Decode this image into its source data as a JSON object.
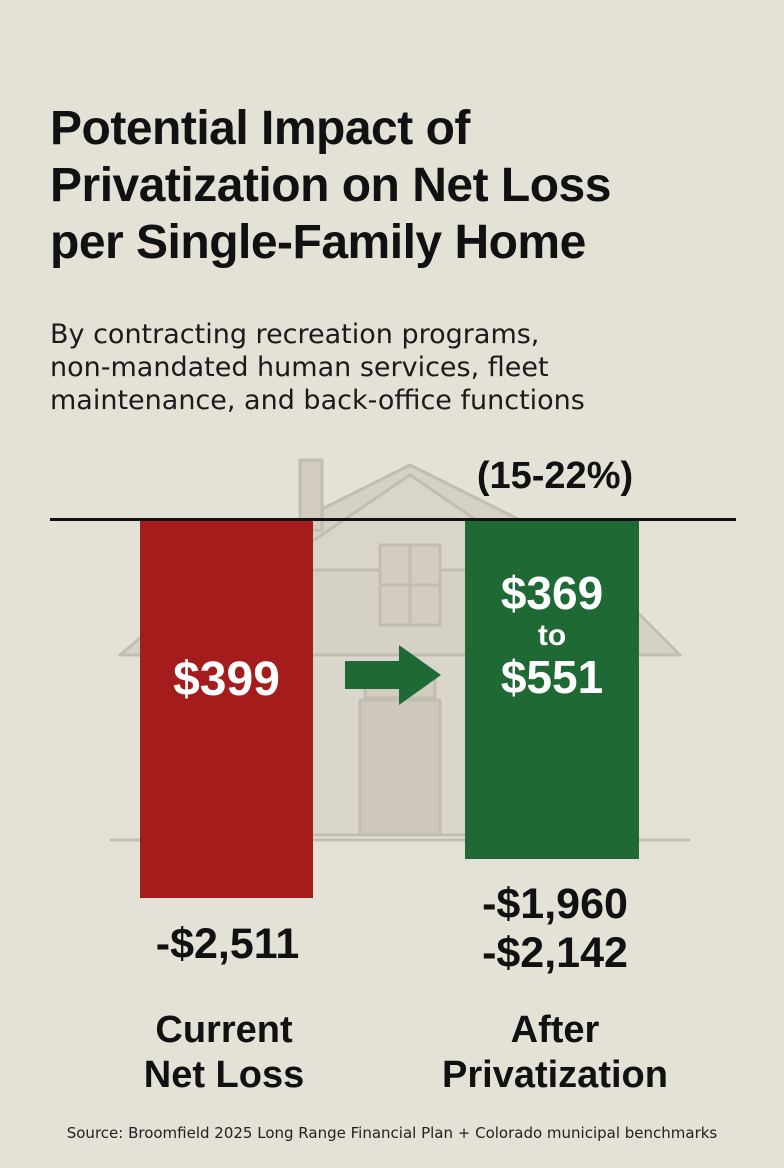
{
  "chart_data": {
    "type": "bar",
    "title": "Potential Impact of Privatization on Net Loss per Single-Family Home",
    "title_lines": [
      "Potential Impact of",
      "Privatization on Net Loss",
      "per Single-Family Home"
    ],
    "subtitle": "By contracting recreation programs, non-mandated human services, fleet maintenance, and back-office functions",
    "subtitle_lines": [
      "By contracting recreation programs,",
      "non-mandated human services, fleet",
      "maintenance, and back-office functions"
    ],
    "categories": [
      "Current Net Loss",
      "After Privatization"
    ],
    "category_lines": [
      [
        "Current",
        "Net Loss"
      ],
      [
        "After",
        "Privatization"
      ]
    ],
    "values": [
      -2511,
      [
        -1960,
        -2142
      ]
    ],
    "value_labels": [
      "-$2,511",
      [
        "-$1,960",
        "-$2,142"
      ]
    ],
    "bar_labels": {
      "current": "$399",
      "after_low": "$369",
      "after_connector": "to",
      "after_high": "$551"
    },
    "annotation": "(15-22%)",
    "source": "Source: Broomfield 2025 Long Range Financial Plan + Colorado municipal benchmarks",
    "colors": {
      "current": "#a41c1c",
      "after": "#1f6a34",
      "arrow": "#1f6a34",
      "background": "#e4e1d7"
    },
    "icons": [
      "house-sketch-illustration",
      "right-arrow-icon"
    ]
  }
}
